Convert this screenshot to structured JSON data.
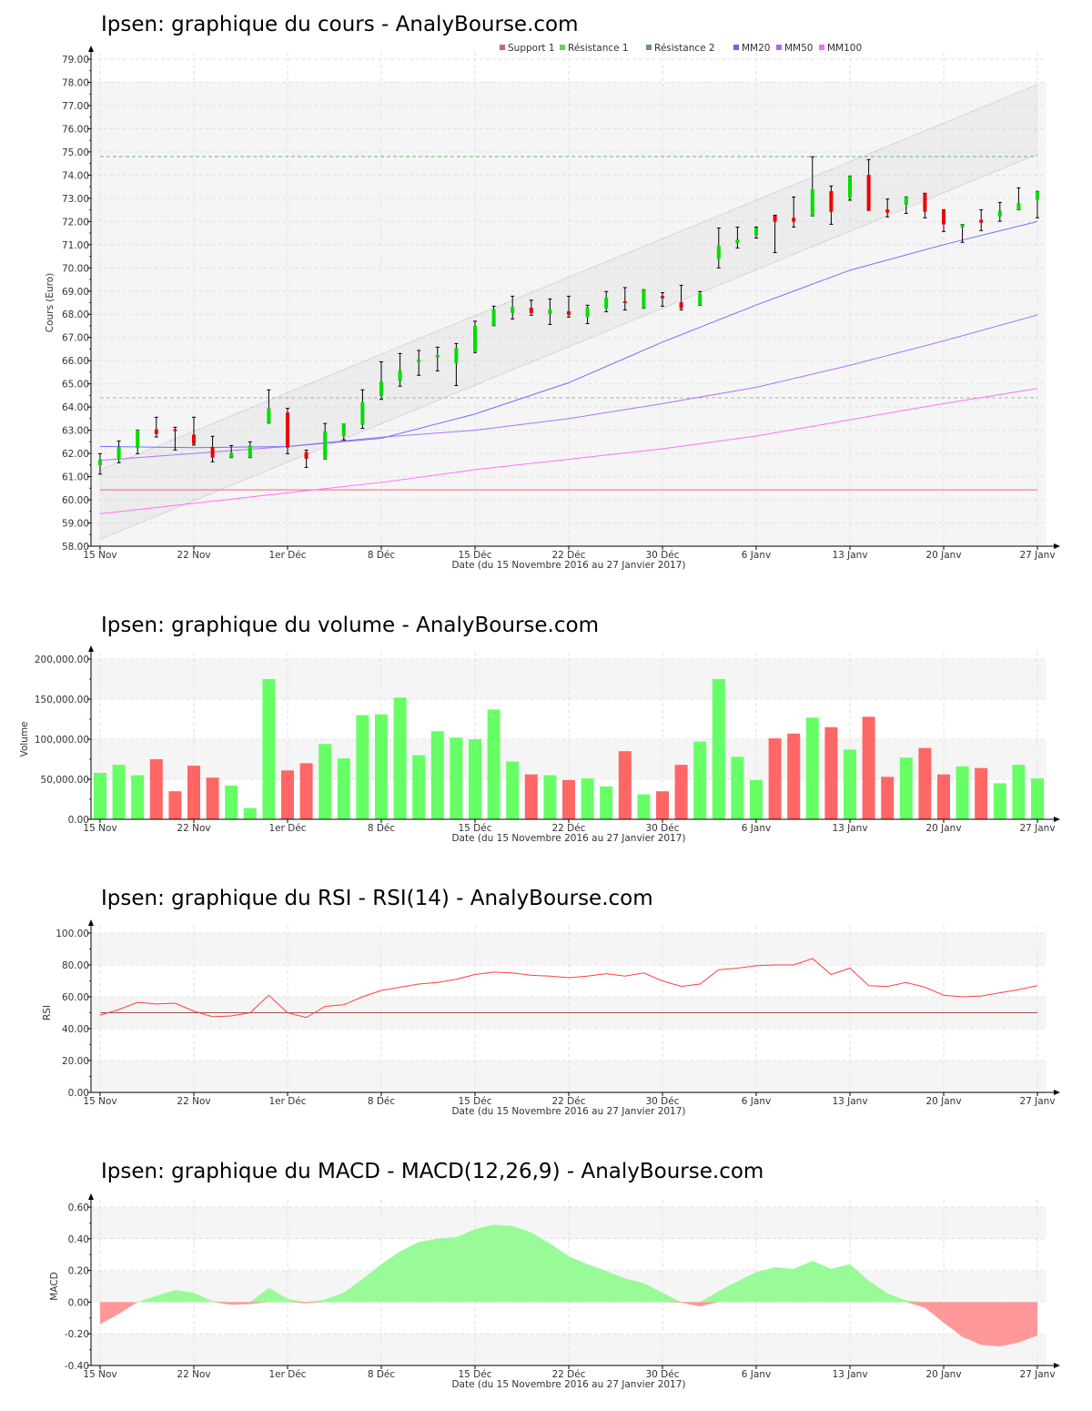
{
  "x_axis": {
    "ticks": [
      {
        "i": 0,
        "label": "15 Nov"
      },
      {
        "i": 5,
        "label": "22 Nov"
      },
      {
        "i": 10,
        "label": "1er Déc"
      },
      {
        "i": 15,
        "label": "8 Déc"
      },
      {
        "i": 20,
        "label": "15 Déc"
      },
      {
        "i": 25,
        "label": "22 Déc"
      },
      {
        "i": 30,
        "label": "30 Déc"
      },
      {
        "i": 35,
        "label": "6 Janv"
      },
      {
        "i": 40,
        "label": "13 Janv"
      },
      {
        "i": 45,
        "label": "20 Janv"
      },
      {
        "i": 50,
        "label": "27 Janv"
      }
    ],
    "label": "Date (du 15 Novembre 2016 au 27 Janvier 2017)"
  },
  "colors": {
    "up": "#00dd00",
    "down": "#ee0000",
    "vol_up": "#66ff66",
    "vol_down": "#ff6666",
    "macd_pos": "#98fb98",
    "macd_neg": "#ff9999",
    "mm20": "#7070ff",
    "mm50": "#b070ff",
    "mm100": "#ff70ff",
    "support": "#e07070",
    "res1": "#b0b0b0",
    "res2": "#66bb66"
  },
  "chart_data": [
    {
      "type": "candlestick",
      "title": "Ipsen: graphique du cours - AnalyBourse.com",
      "ylabel": "Cours (Euro)",
      "ylim": [
        58,
        79
      ],
      "yticks": [
        "58.00",
        "59.00",
        "60.00",
        "61.00",
        "62.00",
        "63.00",
        "64.00",
        "65.00",
        "66.00",
        "67.00",
        "68.00",
        "69.00",
        "70.00",
        "71.00",
        "72.00",
        "73.00",
        "74.00",
        "75.00",
        "76.00",
        "77.00",
        "78.00",
        "79.00"
      ],
      "legend": [
        {
          "label": "Support 1",
          "color": "#cc6666"
        },
        {
          "label": "Résistance 1",
          "color": "#66cc66"
        },
        {
          "label": "Résistance 2",
          "color": "#669966"
        },
        {
          "label": "MM20",
          "color": "#6666ff"
        },
        {
          "label": "MM50",
          "color": "#aa66ff"
        },
        {
          "label": "MM100",
          "color": "#ff66ff"
        }
      ],
      "ohlc": [
        [
          61.5,
          61.99,
          61.11,
          61.75
        ],
        [
          61.73,
          62.54,
          61.6,
          62.28
        ],
        [
          62.23,
          63.01,
          61.99,
          63.01
        ],
        [
          63.04,
          63.56,
          62.71,
          62.84
        ],
        [
          63.04,
          63.13,
          62.15,
          62.96
        ],
        [
          62.81,
          63.56,
          62.36,
          62.41
        ],
        [
          62.28,
          62.74,
          61.64,
          61.82
        ],
        [
          61.82,
          62.34,
          61.82,
          62.02
        ],
        [
          61.82,
          62.5,
          61.82,
          62.34
        ],
        [
          63.31,
          64.74,
          63.31,
          63.95
        ],
        [
          63.76,
          63.95,
          61.99,
          62.25
        ],
        [
          62.06,
          62.14,
          61.4,
          61.77
        ],
        [
          61.76,
          63.29,
          61.76,
          62.95
        ],
        [
          62.76,
          63.26,
          62.58,
          63.26
        ],
        [
          63.23,
          64.74,
          63.08,
          64.21
        ],
        [
          64.48,
          65.95,
          64.33,
          65.09
        ],
        [
          65.12,
          66.31,
          64.9,
          65.58
        ],
        [
          65.94,
          66.44,
          65.37,
          66.05
        ],
        [
          66.14,
          66.58,
          65.56,
          66.24
        ],
        [
          65.88,
          66.74,
          64.93,
          66.54
        ],
        [
          66.4,
          67.7,
          66.35,
          67.5
        ],
        [
          67.51,
          68.35,
          67.51,
          68.21
        ],
        [
          68.06,
          68.78,
          67.8,
          68.32
        ],
        [
          68.28,
          68.61,
          67.96,
          68.05
        ],
        [
          68.01,
          68.66,
          67.56,
          68.21
        ],
        [
          68.13,
          68.78,
          67.88,
          67.98
        ],
        [
          67.87,
          68.39,
          67.6,
          68.3
        ],
        [
          68.26,
          68.98,
          68.11,
          68.72
        ],
        [
          68.56,
          69.15,
          68.19,
          68.5
        ],
        [
          68.26,
          69.06,
          68.26,
          69.06
        ],
        [
          68.79,
          68.93,
          68.35,
          68.69
        ],
        [
          68.52,
          69.25,
          68.19,
          68.26
        ],
        [
          68.39,
          68.98,
          68.39,
          68.89
        ],
        [
          70.38,
          71.72,
          70.0,
          70.94
        ],
        [
          71.06,
          71.76,
          70.86,
          71.23
        ],
        [
          71.4,
          71.76,
          71.29,
          71.74
        ],
        [
          72.25,
          72.27,
          70.66,
          71.99
        ],
        [
          72.16,
          73.06,
          71.76,
          71.99
        ],
        [
          72.24,
          74.79,
          72.24,
          73.39
        ],
        [
          73.31,
          73.53,
          71.88,
          72.42
        ],
        [
          73.01,
          73.96,
          72.92,
          73.96
        ],
        [
          74.01,
          74.67,
          72.48,
          72.48
        ],
        [
          72.52,
          72.97,
          72.2,
          72.38
        ],
        [
          72.72,
          73.06,
          72.35,
          73.06
        ],
        [
          73.22,
          73.22,
          72.16,
          72.42
        ],
        [
          72.51,
          72.51,
          71.57,
          71.88
        ],
        [
          71.75,
          71.87,
          71.1,
          71.87
        ],
        [
          72.07,
          72.51,
          71.61,
          71.95
        ],
        [
          72.22,
          72.82,
          72.01,
          72.46
        ],
        [
          72.51,
          73.45,
          72.51,
          72.8
        ],
        [
          72.94,
          73.3,
          72.16,
          73.3
        ]
      ],
      "ma_index": [
        0,
        5,
        10,
        15,
        20,
        25,
        30,
        35,
        40,
        45,
        50
      ],
      "mm20": [
        62.3,
        62.25,
        62.3,
        62.65,
        63.7,
        65.05,
        66.8,
        68.4,
        69.9,
        71.0,
        72.0
      ],
      "mm50": [
        61.7,
        62.0,
        62.3,
        62.7,
        63.0,
        63.5,
        64.15,
        64.85,
        65.8,
        66.85,
        67.97
      ],
      "mm100": [
        59.4,
        59.85,
        60.3,
        60.75,
        61.3,
        61.75,
        62.2,
        62.75,
        63.45,
        64.15,
        64.8
      ],
      "support1": 60.43,
      "resistance1": 64.4,
      "resistance2": 74.8,
      "channel": {
        "start": 59.8,
        "end": 76.4,
        "half_width": 1.5
      }
    },
    {
      "type": "bar",
      "title": "Ipsen: graphique du volume - AnalyBourse.com",
      "ylabel": "Volume",
      "ylim": [
        0,
        200000
      ],
      "yticks": [
        "0.00",
        "50,000.00",
        "100,000.00",
        "150,000.00",
        "200,000.00"
      ],
      "values": [
        58000,
        68000,
        55000,
        75000,
        35000,
        67000,
        52000,
        42000,
        14000,
        175000,
        61000,
        70000,
        94000,
        76000,
        130000,
        131000,
        152000,
        80000,
        110000,
        102000,
        100000,
        137000,
        72000,
        56000,
        55000,
        49000,
        51000,
        41000,
        85000,
        31000,
        35000,
        68000,
        97000,
        175000,
        78000,
        49000,
        101000,
        107000,
        127000,
        115000,
        87000,
        128000,
        53000,
        77000,
        89000,
        56000,
        66000,
        64000,
        45000,
        68000,
        51000
      ]
    },
    {
      "type": "line",
      "title": "Ipsen: graphique du RSI - RSI(14) - AnalyBourse.com",
      "ylabel": "RSI",
      "ylim": [
        0,
        100
      ],
      "yticks": [
        "0.00",
        "20.00",
        "40.00",
        "60.00",
        "80.00",
        "100.00"
      ],
      "reference": 50,
      "values": [
        48.5,
        52,
        56.5,
        55.5,
        56,
        51,
        47.5,
        48,
        50,
        61,
        50,
        47,
        54,
        55,
        60,
        64,
        66,
        68,
        69,
        71,
        74,
        75.5,
        75,
        73.5,
        73,
        72,
        73,
        74.5,
        73,
        75,
        70,
        66.5,
        68,
        77,
        78,
        79.5,
        80,
        80,
        84,
        74,
        78,
        67,
        66.5,
        69,
        66,
        61,
        60,
        60.5,
        62.5,
        64.5,
        67
      ]
    },
    {
      "type": "area",
      "title": "Ipsen: graphique du MACD - MACD(12,26,9) - AnalyBourse.com",
      "ylabel": "MACD",
      "ylim": [
        -0.4,
        0.6
      ],
      "yticks": [
        "-0.40",
        "-0.20",
        "0.00",
        "0.20",
        "0.40",
        "0.60"
      ],
      "values": [
        -0.14,
        -0.075,
        0.0,
        0.04,
        0.076,
        0.06,
        0.006,
        -0.017,
        -0.013,
        0.09,
        0.02,
        -0.008,
        0.017,
        0.06,
        0.145,
        0.24,
        0.32,
        0.38,
        0.4,
        0.41,
        0.46,
        0.49,
        0.48,
        0.44,
        0.37,
        0.29,
        0.24,
        0.196,
        0.15,
        0.12,
        0.06,
        -0.004,
        -0.027,
        0.07,
        0.13,
        0.19,
        0.22,
        0.21,
        0.26,
        0.21,
        0.24,
        0.135,
        0.055,
        0.011,
        -0.036,
        -0.13,
        -0.22,
        -0.27,
        -0.28,
        -0.255,
        -0.21
      ]
    }
  ]
}
